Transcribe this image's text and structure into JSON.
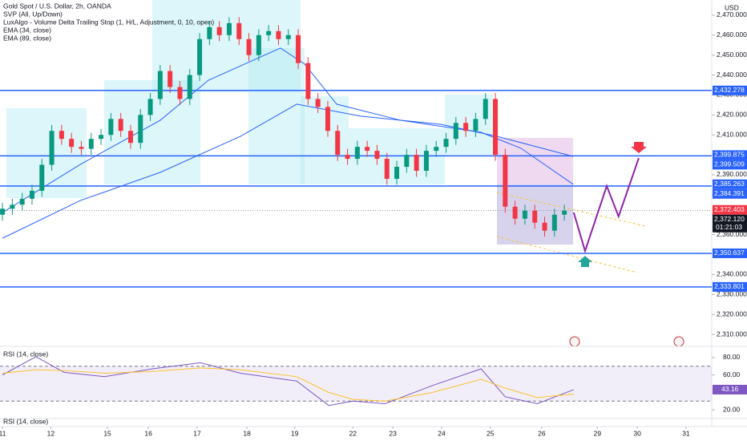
{
  "chart_data": {
    "type": "candlestick",
    "title": "Gold Spot / U.S. Dollar, 2h, OANDA",
    "indicators": [
      "SVP (All, Up/Down)",
      "LuxAlgo - Volume Delta Trailing Stop (1, H/L, Adjustment, 0, 10, open)"
    ],
    "currency": "USD",
    "up_color": "#089981",
    "down_color": "#f23645",
    "xlim": [
      -0.05,
      14.39
    ],
    "ylim": [
      2304.8,
      2477.6
    ],
    "xticks": [
      {
        "value": 0,
        "label": "11"
      },
      {
        "value": 0.98,
        "label": "12"
      },
      {
        "value": 2.13,
        "label": "15"
      },
      {
        "value": 2.96,
        "label": "16"
      },
      {
        "value": 3.95,
        "label": "17"
      },
      {
        "value": 4.96,
        "label": "18"
      },
      {
        "value": 5.93,
        "label": "19"
      },
      {
        "value": 7.11,
        "label": "22"
      },
      {
        "value": 7.92,
        "label": "23"
      },
      {
        "value": 8.91,
        "label": "24"
      },
      {
        "value": 9.9,
        "label": "25"
      },
      {
        "value": 10.94,
        "label": "26"
      },
      {
        "value": 12.07,
        "label": "29"
      },
      {
        "value": 12.88,
        "label": "30"
      },
      {
        "value": 13.87,
        "label": "31"
      }
    ],
    "yticks": [
      {
        "value": 2470,
        "label": "2,470.000"
      },
      {
        "value": 2460,
        "label": "2,460.000"
      },
      {
        "value": 2450,
        "label": "2,450.000"
      },
      {
        "value": 2440,
        "label": "2,440.000"
      },
      {
        "value": 2430,
        "label": "2,430.000"
      },
      {
        "value": 2420,
        "label": "2,420.000"
      },
      {
        "value": 2410,
        "label": "2,410.000"
      },
      {
        "value": 2400,
        "label": "2,400.000"
      },
      {
        "value": 2390,
        "label": "2,390.000"
      },
      {
        "value": 2380,
        "label": "2,380.000"
      },
      {
        "value": 2370,
        "label": "2,370.000"
      },
      {
        "value": 2360,
        "label": "2,360.000"
      },
      {
        "value": 2350,
        "label": "2,350.000"
      },
      {
        "value": 2340,
        "label": "2,340.000"
      },
      {
        "value": 2330,
        "label": "2,330.000"
      },
      {
        "value": 2320,
        "label": "2,320.000"
      },
      {
        "value": 2310,
        "label": "2,310.000"
      }
    ],
    "x": [
      0,
      0.2,
      0.4,
      0.6,
      0.8,
      1,
      1.2,
      1.4,
      1.6,
      1.8,
      2,
      2.2,
      2.4,
      2.6,
      2.8,
      3,
      3.2,
      3.4,
      3.6,
      3.8,
      4,
      4.2,
      4.4,
      4.6,
      4.8,
      5,
      5.2,
      5.4,
      5.6,
      5.8,
      6,
      6.2,
      6.4,
      6.6,
      6.8,
      7,
      7.2,
      7.4,
      7.6,
      7.8,
      8,
      8.2,
      8.4,
      8.6,
      8.8,
      9,
      9.2,
      9.4,
      9.6,
      9.8,
      10,
      10.2,
      10.4,
      10.6,
      10.8,
      11,
      11.2,
      11.4
    ],
    "open": [
      2370,
      2373,
      2375,
      2378,
      2382,
      2395,
      2412,
      2408,
      2404,
      2403,
      2408,
      2410,
      2418,
      2412,
      2406,
      2420,
      2428,
      2442,
      2434,
      2428,
      2440,
      2458,
      2464,
      2460,
      2466,
      2458,
      2450,
      2460,
      2462,
      2458,
      2460,
      2446,
      2428,
      2424,
      2412,
      2400,
      2398,
      2404,
      2402,
      2398,
      2388,
      2394,
      2400,
      2392,
      2402,
      2404,
      2408,
      2416,
      2412,
      2418,
      2428,
      2400,
      2374,
      2368,
      2372,
      2366,
      2362,
      2370
    ],
    "high": [
      2376,
      2378,
      2381,
      2385,
      2398,
      2415,
      2415,
      2411,
      2407,
      2411,
      2413,
      2421,
      2421,
      2415,
      2423,
      2431,
      2445,
      2445,
      2437,
      2443,
      2461,
      2467,
      2467,
      2469,
      2469,
      2461,
      2463,
      2465,
      2465,
      2463,
      2463,
      2449,
      2431,
      2427,
      2415,
      2403,
      2407,
      2407,
      2405,
      2401,
      2397,
      2403,
      2403,
      2405,
      2407,
      2411,
      2419,
      2419,
      2421,
      2431,
      2431,
      2403,
      2377,
      2375,
      2375,
      2369,
      2373,
      2375
    ],
    "low": [
      2367,
      2370,
      2372,
      2375,
      2379,
      2392,
      2405,
      2401,
      2400,
      2400,
      2405,
      2407,
      2409,
      2403,
      2403,
      2417,
      2425,
      2431,
      2425,
      2425,
      2437,
      2455,
      2457,
      2457,
      2455,
      2447,
      2447,
      2457,
      2455,
      2455,
      2443,
      2425,
      2421,
      2409,
      2397,
      2395,
      2395,
      2399,
      2395,
      2385,
      2385,
      2391,
      2389,
      2389,
      2399,
      2401,
      2405,
      2409,
      2409,
      2415,
      2397,
      2371,
      2365,
      2365,
      2363,
      2359,
      2359,
      2367
    ],
    "close": [
      2373,
      2375,
      2378,
      2382,
      2395,
      2412,
      2408,
      2404,
      2403,
      2408,
      2410,
      2418,
      2412,
      2406,
      2420,
      2428,
      2442,
      2434,
      2428,
      2440,
      2458,
      2464,
      2460,
      2466,
      2458,
      2450,
      2460,
      2462,
      2458,
      2460,
      2446,
      2428,
      2424,
      2412,
      2400,
      2398,
      2404,
      2402,
      2398,
      2388,
      2394,
      2400,
      2392,
      2402,
      2404,
      2408,
      2416,
      2412,
      2418,
      2428,
      2400,
      2374,
      2368,
      2372,
      2366,
      2362,
      2370,
      2372
    ],
    "series": [
      {
        "name": "EMA (34, close)",
        "color": "#2962ff",
        "x": [
          0,
          1.58,
          3.2,
          4.18,
          5.64,
          6.13,
          6.78,
          8.08,
          9.71,
          10.52,
          11.58
        ],
        "values": [
          2371.1,
          2395.2,
          2417.3,
          2437.4,
          2453.5,
          2445.5,
          2425.4,
          2417.3,
          2411.3,
          2403.3,
          2385.2
        ]
      },
      {
        "name": "EMA (89, close)",
        "color": "#2962ff",
        "x": [
          0,
          1.58,
          3.2,
          4.83,
          5.97,
          7.27,
          8.89,
          10.03,
          11.58
        ],
        "values": [
          2358.2,
          2377.1,
          2391.2,
          2409.3,
          2425.4,
          2419.4,
          2415.3,
          2409.3,
          2399.2
        ]
      }
    ],
    "projection": {
      "color": "#8e24aa",
      "x": [
        11.59,
        11.82,
        12.26,
        12.5,
        12.91
      ],
      "values": [
        2371.1,
        2351.8,
        2384.4,
        2369.1,
        2398.4
      ]
    },
    "level_color": "#2962ff",
    "levels": [
      {
        "value": 2432.278,
        "label": "2,432.278"
      },
      {
        "value": 2399.509,
        "label": "2,399.509"
      },
      {
        "value": 2384.391,
        "label": "2,384.391"
      },
      {
        "value": 2350.637,
        "label": "2,350.637"
      },
      {
        "value": 2333.801,
        "label": "2,333.801"
      }
    ],
    "price_labels": [
      {
        "value": 2399.875,
        "label": "2,399.875",
        "color": "#2962ff"
      },
      {
        "value": 2385.263,
        "label": "2,385.263",
        "color": "#2962ff"
      },
      {
        "value": 2372.12,
        "label": "2,372.120",
        "color": "#131722",
        "sub": "01:21:03"
      },
      {
        "value": 2372.403,
        "label": "2,372.403",
        "color": "#f23645"
      }
    ],
    "rsi": {
      "title": "RSI (14, close)",
      "ylim": [
        10,
        90
      ],
      "yticks": [
        {
          "value": 80,
          "label": "80.00"
        },
        {
          "value": 60,
          "label": "60.00"
        },
        {
          "value": 20,
          "label": "20.00"
        }
      ],
      "bands": [
        70,
        30
      ],
      "x": [
        0,
        0.68,
        1.25,
        2.07,
        3.04,
        4.02,
        4.83,
        5.97,
        6.62,
        7.11,
        7.76,
        8.73,
        9.71,
        10.2,
        10.85,
        11.59
      ],
      "series": [
        {
          "color": "#7e57c2",
          "values": [
            60,
            81,
            63,
            58,
            67,
            74,
            62,
            53,
            25,
            30,
            27,
            48,
            67,
            35,
            27,
            43.16
          ]
        },
        {
          "color": "#fbc02d",
          "values": [
            62,
            66,
            65,
            62,
            64,
            68,
            66,
            58,
            40,
            32,
            30,
            40,
            55,
            45,
            34,
            38
          ]
        }
      ]
    },
    "rsi2_title": "RSI (14, close)"
  }
}
